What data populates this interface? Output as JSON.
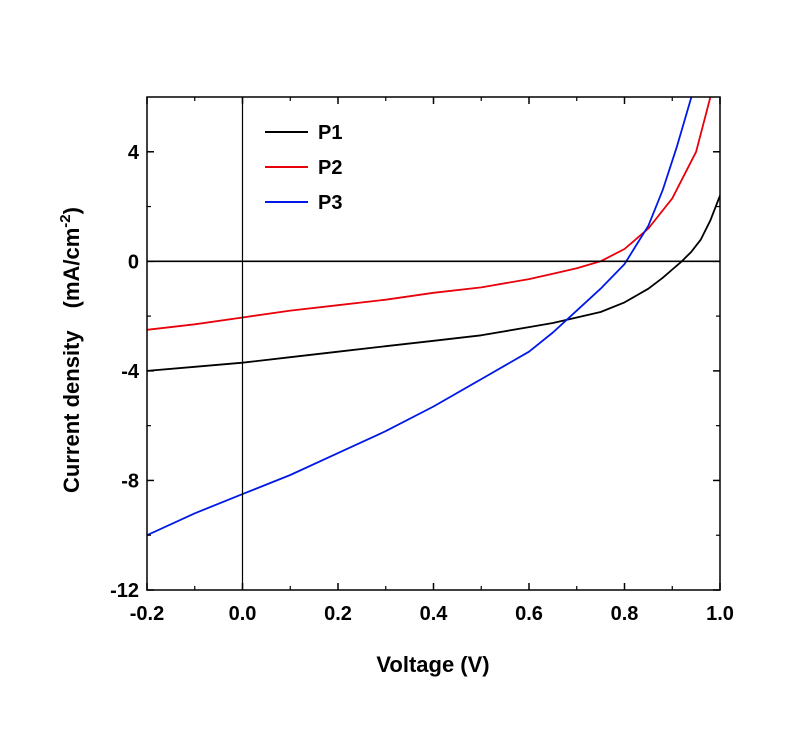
{
  "chart_data": {
    "type": "line",
    "title": "",
    "xlabel": "Voltage (V)",
    "ylabel_main": "Current density　(mA/cm",
    "ylabel_exp": "-2",
    "ylabel_close": ")",
    "xlim": [
      -0.2,
      1.0
    ],
    "ylim": [
      -12,
      6
    ],
    "xticks": [
      -0.2,
      0.0,
      0.2,
      0.4,
      0.6,
      0.8,
      1.0
    ],
    "xtick_labels": [
      "-0.2",
      "0.0",
      "0.2",
      "0.4",
      "0.6",
      "0.8",
      "1.0"
    ],
    "yticks": [
      -12,
      -8,
      -4,
      0,
      4
    ],
    "ytick_labels": [
      "-12",
      "-8",
      "-4",
      "0",
      "4"
    ],
    "grid": false,
    "legend_position": "top-left",
    "reference_lines": {
      "x": 0,
      "y": 0
    },
    "series": [
      {
        "name": "P1",
        "color": "#000000",
        "x": [
          -0.2,
          -0.1,
          0.0,
          0.1,
          0.2,
          0.3,
          0.4,
          0.5,
          0.6,
          0.65,
          0.7,
          0.75,
          0.8,
          0.85,
          0.88,
          0.9,
          0.92,
          0.94,
          0.96,
          0.98,
          1.0
        ],
        "y": [
          -4.0,
          -3.85,
          -3.7,
          -3.5,
          -3.3,
          -3.1,
          -2.9,
          -2.7,
          -2.4,
          -2.25,
          -2.05,
          -1.85,
          -1.5,
          -1.0,
          -0.6,
          -0.3,
          0.0,
          0.35,
          0.8,
          1.5,
          2.4
        ]
      },
      {
        "name": "P2",
        "color": "#e8000b",
        "x": [
          -0.2,
          -0.1,
          0.0,
          0.1,
          0.2,
          0.3,
          0.4,
          0.5,
          0.6,
          0.65,
          0.7,
          0.75,
          0.8,
          0.85,
          0.9,
          0.95,
          0.98
        ],
        "y": [
          -2.5,
          -2.3,
          -2.05,
          -1.8,
          -1.6,
          -1.4,
          -1.15,
          -0.95,
          -0.65,
          -0.45,
          -0.25,
          0.0,
          0.45,
          1.2,
          2.3,
          4.0,
          6.0
        ]
      },
      {
        "name": "P3",
        "color": "#0019e6",
        "x": [
          -0.2,
          -0.1,
          0.0,
          0.1,
          0.2,
          0.3,
          0.4,
          0.5,
          0.6,
          0.65,
          0.7,
          0.75,
          0.8,
          0.85,
          0.88,
          0.91,
          0.94
        ],
        "y": [
          -10.0,
          -9.2,
          -8.5,
          -7.8,
          -7.0,
          -6.2,
          -5.3,
          -4.3,
          -3.3,
          -2.6,
          -1.8,
          -1.0,
          -0.1,
          1.3,
          2.6,
          4.2,
          6.0
        ]
      }
    ]
  }
}
